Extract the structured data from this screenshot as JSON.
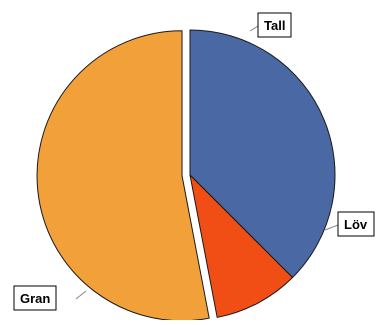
{
  "chart_data": {
    "type": "pie",
    "slices": [
      {
        "label": "Tall",
        "value": 37.5,
        "color": "#4A68A4"
      },
      {
        "label": "Löv",
        "value": 9.5,
        "color": "#F04E15"
      },
      {
        "label": "Gran",
        "value": 53.0,
        "color": "#F2A03A"
      }
    ],
    "start_angle_deg": -90,
    "direction": "clockwise",
    "exploded": [
      "Gran"
    ],
    "legend": "none",
    "labels_outside_with_boxes": true
  }
}
